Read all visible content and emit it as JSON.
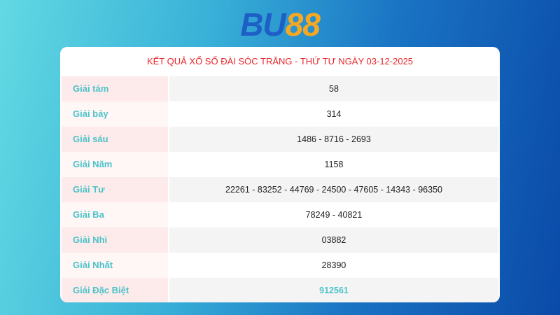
{
  "logo": {
    "part1": "BU",
    "part2": "88"
  },
  "title": "KẾT QUẢ XỔ SỐ ĐÀI SÓC TRĂNG - THỨ TƯ NGÀY 03-12-2025",
  "rows": [
    {
      "label": "Giải tám",
      "value": "58"
    },
    {
      "label": "Giải bảy",
      "value": "314"
    },
    {
      "label": "Giải sáu",
      "value": "1486 - 8716 - 2693"
    },
    {
      "label": "Giải Năm",
      "value": "1158"
    },
    {
      "label": "Giải Tư",
      "value": "22261 - 83252 - 44769 - 24500 - 47605 - 14343 - 96350"
    },
    {
      "label": "Giải Ba",
      "value": "78249 - 40821"
    },
    {
      "label": "Giải Nhì",
      "value": "03882"
    },
    {
      "label": "Giải Nhất",
      "value": "28390"
    },
    {
      "label": "Giải Đặc Biệt",
      "value": "912561"
    }
  ],
  "colors": {
    "title": "#e8262a",
    "label": "#4cc3c9",
    "special": "#4cc3c9"
  }
}
